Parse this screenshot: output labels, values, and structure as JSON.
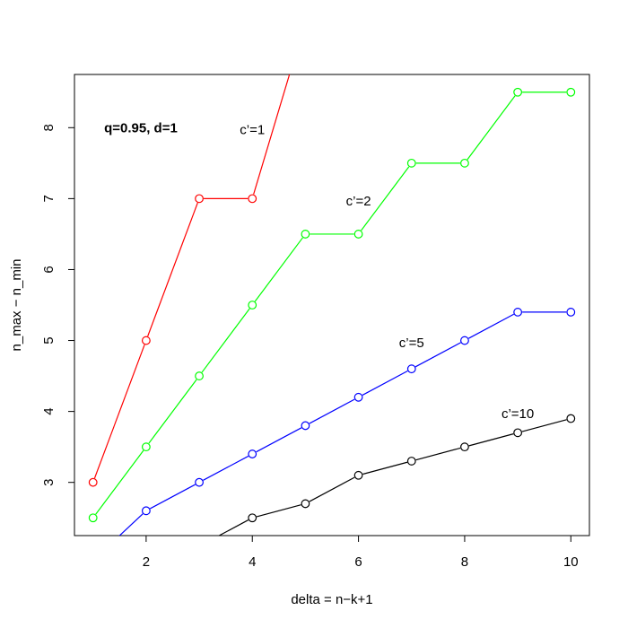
{
  "chart_data": {
    "type": "line",
    "title": "",
    "xlabel": "delta = n−k+1",
    "ylabel": "n_max − n_min",
    "xlim": [
      0.65,
      10.35
    ],
    "ylim": [
      2.25,
      8.75
    ],
    "x_ticks": [
      2,
      4,
      6,
      8,
      10
    ],
    "y_ticks": [
      3,
      4,
      5,
      6,
      7,
      8
    ],
    "grid": false,
    "annotation": "q=0.95, d=1",
    "series": [
      {
        "name": "c’=1",
        "color": "#ff0000",
        "x": [
          1,
          2,
          3,
          4,
          5
        ],
        "y": [
          3.0,
          5.0,
          7.0,
          7.0,
          9.5
        ]
      },
      {
        "name": "c’=2",
        "color": "#00ff00",
        "x": [
          1,
          2,
          3,
          4,
          5,
          6,
          7,
          8,
          9,
          10
        ],
        "y": [
          2.5,
          3.5,
          4.5,
          5.5,
          6.5,
          6.5,
          7.5,
          7.5,
          8.5,
          8.5
        ]
      },
      {
        "name": "c’=5",
        "color": "#0000ff",
        "x": [
          1,
          2,
          3,
          4,
          5,
          6,
          7,
          8,
          9,
          10
        ],
        "y": [
          1.9,
          2.6,
          3.0,
          3.4,
          3.8,
          4.2,
          4.6,
          5.0,
          5.4,
          5.4
        ]
      },
      {
        "name": "c’=10",
        "color": "#000000",
        "x": [
          1,
          2,
          3,
          4,
          5,
          6,
          7,
          8,
          9,
          10
        ],
        "y": [
          1.7,
          1.9,
          2.1,
          2.5,
          2.7,
          3.1,
          3.3,
          3.5,
          3.7,
          3.9
        ]
      }
    ],
    "series_labels": [
      {
        "text": "c’=1",
        "x": 4.0,
        "y": 7.97
      },
      {
        "text": "c’=2",
        "x": 6.0,
        "y": 6.97
      },
      {
        "text": "c’=5",
        "x": 7.0,
        "y": 4.97
      },
      {
        "text": "c’=10",
        "x": 9.0,
        "y": 3.97
      }
    ]
  }
}
